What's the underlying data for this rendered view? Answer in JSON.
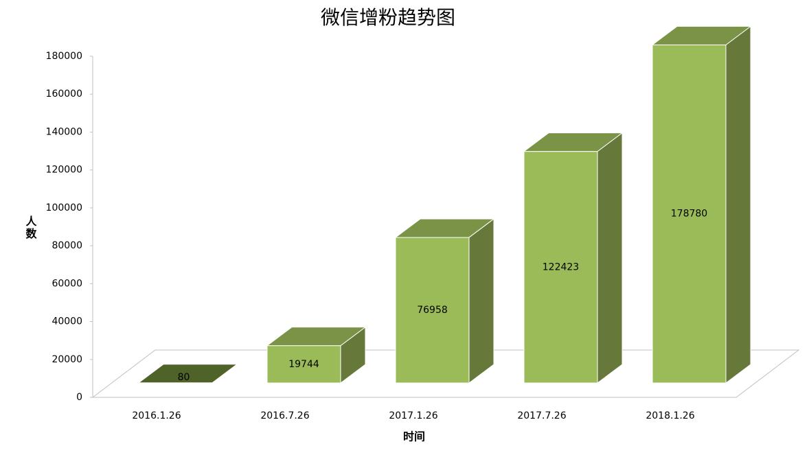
{
  "chart_data": {
    "type": "bar3d",
    "title": "微信增粉趋势图",
    "x_label": "时间",
    "y_label": "人数",
    "categories": [
      "2016.1.26",
      "2016.7.26",
      "2017.1.26",
      "2017.7.26",
      "2018.1.26"
    ],
    "values": [
      80,
      19744,
      76958,
      122423,
      178780
    ],
    "color": "#9bbb59",
    "ylim": [
      0,
      180000
    ],
    "yticks": [
      0,
      20000,
      40000,
      60000,
      80000,
      100000,
      120000,
      140000,
      160000,
      180000
    ]
  }
}
